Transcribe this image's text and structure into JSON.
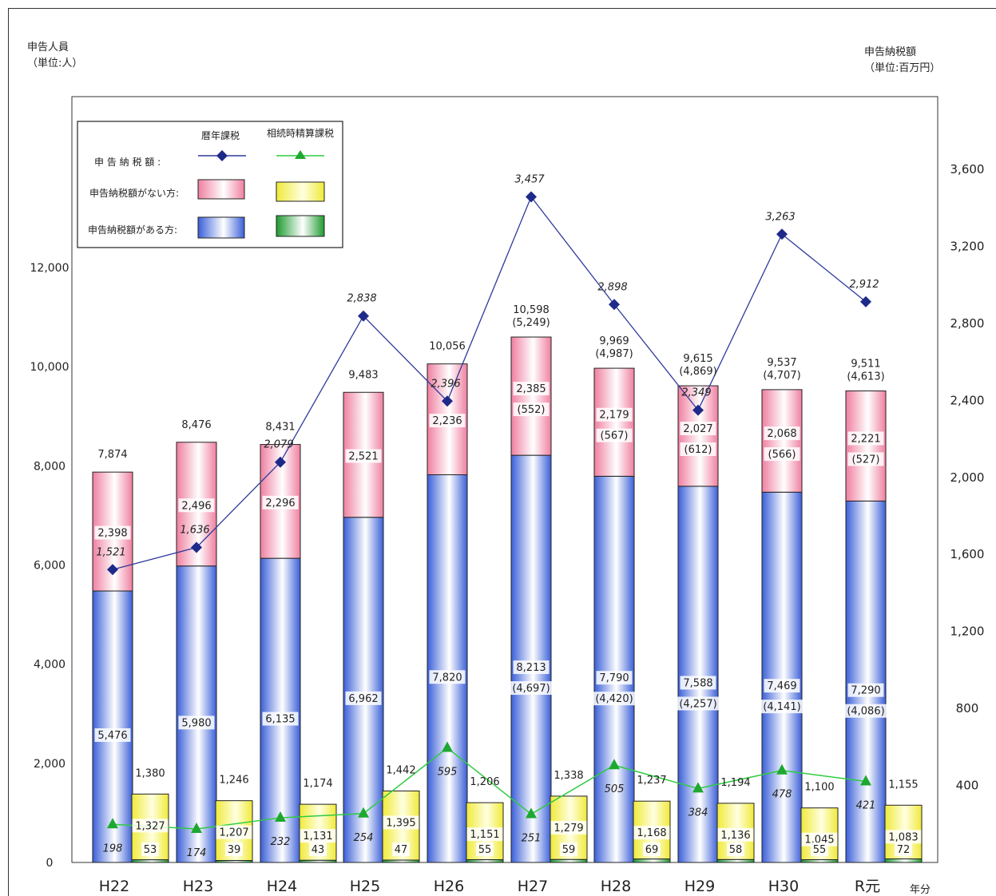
{
  "left_axis": {
    "title": "申告人員",
    "unit": "（単位:人）"
  },
  "right_axis": {
    "title": "申告納税額",
    "unit": "（単位:百万円）"
  },
  "legend": {
    "col_headers": [
      "暦年課税",
      "相続時精算課税"
    ],
    "rows": [
      "申 告 納 税 額 :",
      "申告納税額がない方:",
      "申告納税額がある方:"
    ]
  },
  "colors": {
    "reki_with_tax": "#4a6ee0",
    "reki_no_tax": "#f29bb4",
    "seisan_no_tax": "#f5f060",
    "seisan_with_tax": "#2fa83a",
    "tax_line_reki": "#2e3a9a",
    "tax_line_seisan": "#2ecc40"
  },
  "chart_data": {
    "type": "bar",
    "categories": [
      "H22",
      "H23",
      "H24",
      "H25",
      "H26",
      "H27",
      "H28",
      "H29",
      "H30",
      "R元"
    ],
    "x_axis_suffix": "年分",
    "ylim_left": [
      0,
      12000
    ],
    "yticks_left": [
      "0",
      "2,000",
      "4,000",
      "6,000",
      "8,000",
      "10,000",
      "12,000"
    ],
    "ylim_right": [
      0,
      3600
    ],
    "yticks_right": [
      "400",
      "800",
      "1,200",
      "1,600",
      "2,000",
      "2,400",
      "2,800",
      "3,200",
      "3,600"
    ],
    "reki_total": [
      "7,874",
      "8,476",
      "8,431",
      "9,483",
      "10,056",
      "10,598",
      "9,969",
      "9,615",
      "9,537",
      "9,511"
    ],
    "reki_total_paren": [
      "",
      "",
      "",
      "",
      "",
      "(5,249)",
      "(4,987)",
      "(4,869)",
      "(4,707)",
      "(4,613)"
    ],
    "reki_with_tax": [
      5476,
      5980,
      6135,
      6962,
      7820,
      8213,
      7790,
      7588,
      7469,
      7290
    ],
    "reki_with_tax_labels": [
      "5,476",
      "5,980",
      "6,135",
      "6,962",
      "7,820",
      "8,213",
      "7,790",
      "7,588",
      "7,469",
      "7,290"
    ],
    "reki_with_tax_paren": [
      "",
      "",
      "",
      "",
      "",
      "(4,697)",
      "(4,420)",
      "(4,257)",
      "(4,141)",
      "(4,086)"
    ],
    "reki_no_tax": [
      2398,
      2496,
      2296,
      2521,
      2236,
      2385,
      2179,
      2027,
      2068,
      2221
    ],
    "reki_no_tax_labels": [
      "2,398",
      "2,496",
      "2,296",
      "2,521",
      "2,236",
      "2,385",
      "2,179",
      "2,027",
      "2,068",
      "2,221"
    ],
    "reki_no_tax_paren": [
      "",
      "",
      "",
      "",
      "",
      "(552)",
      "(567)",
      "(612)",
      "(566)",
      "(527)"
    ],
    "seisan_total": [
      "1,380",
      "1,246",
      "1,174",
      "1,442",
      "1,206",
      "1,338",
      "1,237",
      "1,194",
      "1,100",
      "1,155"
    ],
    "seisan_no_tax": [
      1327,
      1207,
      1131,
      1395,
      1151,
      1279,
      1168,
      1136,
      1045,
      1083
    ],
    "seisan_no_tax_labels": [
      "1,327",
      "1,207",
      "1,131",
      "1,395",
      "1,151",
      "1,279",
      "1,168",
      "1,136",
      "1,045",
      "1,083"
    ],
    "seisan_with_tax": [
      53,
      39,
      43,
      47,
      55,
      59,
      69,
      58,
      55,
      72
    ],
    "seisan_with_tax_labels": [
      "53",
      "39",
      "43",
      "47",
      "55",
      "59",
      "69",
      "58",
      "55",
      "72"
    ],
    "tax_reki": [
      1521,
      1636,
      2079,
      2838,
      2396,
      3457,
      2898,
      2349,
      3263,
      2912
    ],
    "tax_reki_labels": [
      "1,521",
      "1,636",
      "2,079",
      "2,838",
      "2,396",
      "3,457",
      "2,898",
      "2,349",
      "3,263",
      "2,912"
    ],
    "tax_seisan": [
      198,
      174,
      232,
      254,
      595,
      251,
      505,
      384,
      478,
      421
    ],
    "tax_seisan_labels": [
      "198",
      "174",
      "232",
      "254",
      "595",
      "251",
      "505",
      "384",
      "478",
      "421"
    ]
  }
}
